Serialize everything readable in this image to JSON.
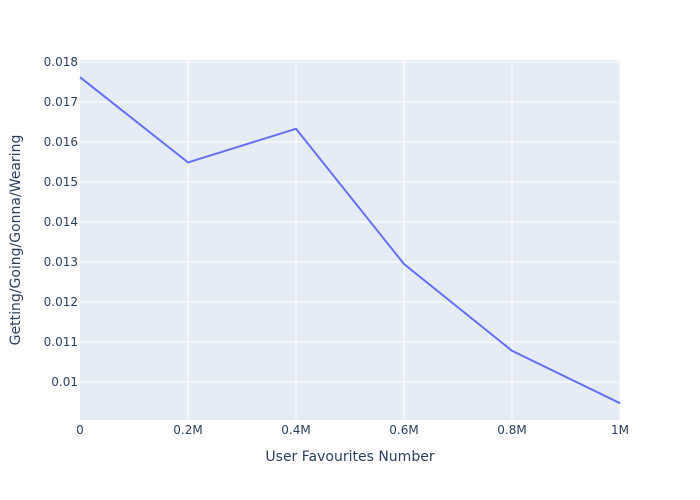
{
  "chart_data": {
    "type": "line",
    "title": "",
    "xlabel": "User Favourites Number",
    "ylabel": "Getting/Going/Gonna/Wearing",
    "x": [
      0,
      200000,
      400000,
      600000,
      800000,
      1000000
    ],
    "series": [
      {
        "values": [
          0.01762,
          0.01549,
          0.01633,
          0.01295,
          0.01078,
          0.00947
        ]
      }
    ],
    "xlim": [
      0,
      1000000
    ],
    "ylim": [
      0.00905,
      0.01805
    ],
    "x_ticks": [
      {
        "value": 0,
        "label": "0"
      },
      {
        "value": 200000,
        "label": "0.2M"
      },
      {
        "value": 400000,
        "label": "0.4M"
      },
      {
        "value": 600000,
        "label": "0.6M"
      },
      {
        "value": 800000,
        "label": "0.8M"
      },
      {
        "value": 1000000,
        "label": "1M"
      }
    ],
    "y_ticks": [
      {
        "value": 0.01,
        "label": "0.01"
      },
      {
        "value": 0.011,
        "label": "0.011"
      },
      {
        "value": 0.012,
        "label": "0.012"
      },
      {
        "value": 0.013,
        "label": "0.013"
      },
      {
        "value": 0.014,
        "label": "0.014"
      },
      {
        "value": 0.015,
        "label": "0.015"
      },
      {
        "value": 0.016,
        "label": "0.016"
      },
      {
        "value": 0.017,
        "label": "0.017"
      },
      {
        "value": 0.018,
        "label": "0.018"
      }
    ],
    "grid": true,
    "colors": {
      "plot_background": "#e5ecf6",
      "grid": "#ffffff",
      "line": "#636efa",
      "text": "#2a3f5f"
    }
  }
}
